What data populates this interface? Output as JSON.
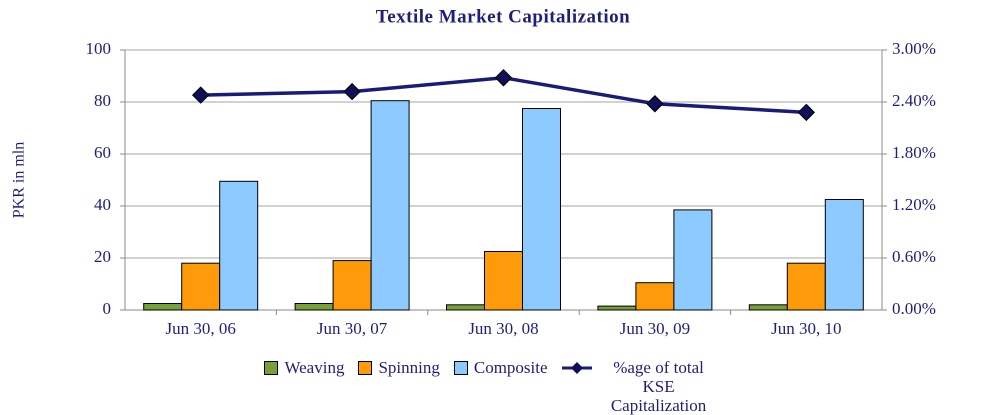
{
  "chart_data": {
    "type": "bar",
    "title": "Textile Market Capitalization",
    "ylabel": "PKR in mln",
    "categories": [
      "Jun 30, 06",
      "Jun 30, 07",
      "Jun 30, 08",
      "Jun 30, 09",
      "Jun 30, 10"
    ],
    "series": [
      {
        "name": "Weaving",
        "color": "#77a03a",
        "values": [
          2.5,
          2.5,
          2,
          1.5,
          2
        ]
      },
      {
        "name": "Spinning",
        "color": "#ff9a0a",
        "values": [
          18,
          19,
          22.5,
          10.5,
          18
        ]
      },
      {
        "name": "Composite",
        "color": "#8ccaff",
        "values": [
          49.5,
          80.5,
          77.5,
          38.5,
          42.5
        ]
      },
      {
        "name": "%age of total KSE Capitalization",
        "color": "#1a1a7a",
        "type": "line",
        "axis": "y2",
        "values": [
          2.48,
          2.52,
          2.68,
          2.38,
          2.28
        ]
      }
    ],
    "ylim": [
      0,
      100
    ],
    "yticks": [
      0,
      20,
      40,
      60,
      80,
      100
    ],
    "y2lim": [
      0,
      3
    ],
    "y2ticks": [
      {
        "value": 0,
        "label": "0.00%"
      },
      {
        "value": 0.6,
        "label": "0.60%"
      },
      {
        "value": 1.2,
        "label": "1.20%"
      },
      {
        "value": 1.8,
        "label": "1.80%"
      },
      {
        "value": 2.4,
        "label": "2.40%"
      },
      {
        "value": 3,
        "label": "3.00%"
      }
    ],
    "grid": true
  }
}
